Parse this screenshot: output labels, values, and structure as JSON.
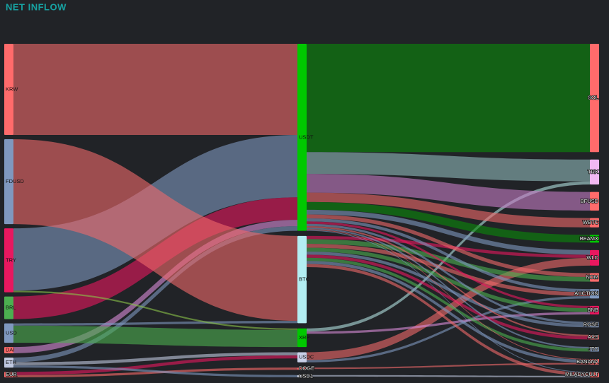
{
  "chart_data": {
    "type": "sankey",
    "title": "NET INFLOW",
    "nodes": [
      {
        "name": "KRW",
        "color": "#ff6b6b"
      },
      {
        "name": "FDUSD",
        "color": "#7f98bf"
      },
      {
        "name": "TRY",
        "color": "#e8185f"
      },
      {
        "name": "BRL",
        "color": "#4caf50"
      },
      {
        "name": "USD",
        "color": "#7f98bf"
      },
      {
        "name": "DAI",
        "color": "#ff6b6b"
      },
      {
        "name": "ETH",
        "color": "#c0c8e0"
      },
      {
        "name": "EUR",
        "color": "#ff6b6b"
      },
      {
        "name": "USDT",
        "color": "#00c800"
      },
      {
        "name": "BTC",
        "color": "#b3eef2"
      },
      {
        "name": "XRP",
        "color": "#00c800"
      },
      {
        "name": "USDC",
        "color": "#c9d0e8"
      },
      {
        "name": "DOGE",
        "color": "#ff6b6b"
      },
      {
        "name": "USD1",
        "color": "#dfe3f0"
      },
      {
        "name": "SOL",
        "color": "#ff6b6b"
      },
      {
        "name": "TRX",
        "color": "#f2b8f2"
      },
      {
        "name": "BFUSD",
        "color": "#ff6b6b"
      },
      {
        "name": "WBTC",
        "color": "#ff6b6b"
      },
      {
        "name": "BEAMX",
        "color": "#00c800"
      },
      {
        "name": "WLD",
        "color": "#e8185f"
      },
      {
        "name": "NOM",
        "color": "#ff6b6b"
      },
      {
        "name": "AUCTION",
        "color": "#7f98bf"
      },
      {
        "name": "BNB",
        "color": "#e8185f"
      },
      {
        "name": "ROSE",
        "color": "#7f98bf"
      },
      {
        "name": "AXS",
        "color": "#ff6b6b"
      },
      {
        "name": "JTO",
        "color": "#7f98bf"
      },
      {
        "name": "BANANA",
        "color": "#ff6b6b"
      },
      {
        "name": "MILADYCULT",
        "color": "#ff6b6b"
      }
    ],
    "links": [
      {
        "source": 0,
        "target": 8,
        "value": 117,
        "color": "#f0696b"
      },
      {
        "source": 2,
        "target": 8,
        "value": 80,
        "color": "#7f98bf"
      },
      {
        "source": 3,
        "target": 8,
        "value": 29,
        "color": "#e8185f"
      },
      {
        "source": 5,
        "target": 8,
        "value": 8,
        "color": "#d98cd9"
      },
      {
        "source": 6,
        "target": 8,
        "value": 6,
        "color": "#7f98bf"
      },
      {
        "source": 1,
        "target": 9,
        "value": 109,
        "color": "#f0696b"
      },
      {
        "source": 4,
        "target": 9,
        "value": 3,
        "color": "#7f98bf"
      },
      {
        "source": 2,
        "target": 10,
        "value": 2,
        "color": "#8bc34a"
      },
      {
        "source": 4,
        "target": 10,
        "value": 22,
        "color": "#4caf50"
      },
      {
        "source": 6,
        "target": 11,
        "value": 4,
        "color": "#c0c8e0"
      },
      {
        "source": 7,
        "target": 11,
        "value": 4,
        "color": "#e8185f"
      },
      {
        "source": 7,
        "target": 12,
        "value": 3,
        "color": "#ff6b6b"
      },
      {
        "source": 6,
        "target": 13,
        "value": 3,
        "color": "#7f98bf"
      },
      {
        "source": 8,
        "target": 14,
        "value": 139,
        "color": "#0a8a0a"
      },
      {
        "source": 8,
        "target": 15,
        "value": 28,
        "color": "#8fb9ba"
      },
      {
        "source": 10,
        "target": 15,
        "value": 4,
        "color": "#b0e0e0"
      },
      {
        "source": 8,
        "target": 16,
        "value": 24,
        "color": "#c77dc7"
      },
      {
        "source": 8,
        "target": 17,
        "value": 12,
        "color": "#f0696b"
      },
      {
        "source": 8,
        "target": 18,
        "value": 10,
        "color": "#0a8a0a"
      },
      {
        "source": 8,
        "target": 19,
        "value": 6,
        "color": "#7f98bf"
      },
      {
        "source": 9,
        "target": 19,
        "value": 4,
        "color": "#e8185f"
      },
      {
        "source": 11,
        "target": 19,
        "value": 10,
        "color": "#f0696b"
      },
      {
        "source": 8,
        "target": 20,
        "value": 5,
        "color": "#f0696b"
      },
      {
        "source": 9,
        "target": 20,
        "value": 6,
        "color": "#4caf50"
      },
      {
        "source": 8,
        "target": 21,
        "value": 4,
        "color": "#7f98bf"
      },
      {
        "source": 9,
        "target": 21,
        "value": 5,
        "color": "#f0696b"
      },
      {
        "source": 11,
        "target": 21,
        "value": 3,
        "color": "#7f98bf"
      },
      {
        "source": 8,
        "target": 22,
        "value": 3,
        "color": "#e8185f"
      },
      {
        "source": 9,
        "target": 22,
        "value": 5,
        "color": "#4caf50"
      },
      {
        "source": 10,
        "target": 22,
        "value": 3,
        "color": "#d98cd9"
      },
      {
        "source": 8,
        "target": 23,
        "value": 3,
        "color": "#7f98bf"
      },
      {
        "source": 9,
        "target": 23,
        "value": 4,
        "color": "#7f98bf"
      },
      {
        "source": 8,
        "target": 24,
        "value": 2,
        "color": "#f0696b"
      },
      {
        "source": 9,
        "target": 24,
        "value": 4,
        "color": "#e8185f"
      },
      {
        "source": 8,
        "target": 25,
        "value": 2,
        "color": "#7f98bf"
      },
      {
        "source": 9,
        "target": 25,
        "value": 4,
        "color": "#4caf50"
      },
      {
        "source": 8,
        "target": 26,
        "value": 1,
        "color": "#f0696b"
      },
      {
        "source": 9,
        "target": 26,
        "value": 4,
        "color": "#7f98bf"
      },
      {
        "source": 12,
        "target": 26,
        "value": 2,
        "color": "#f0696b"
      },
      {
        "source": 8,
        "target": 27,
        "value": 1,
        "color": "#7f98bf"
      },
      {
        "source": 9,
        "target": 27,
        "value": 4,
        "color": "#f0696b"
      },
      {
        "source": 13,
        "target": 27,
        "value": 2,
        "color": "#c0c8e0"
      }
    ]
  }
}
